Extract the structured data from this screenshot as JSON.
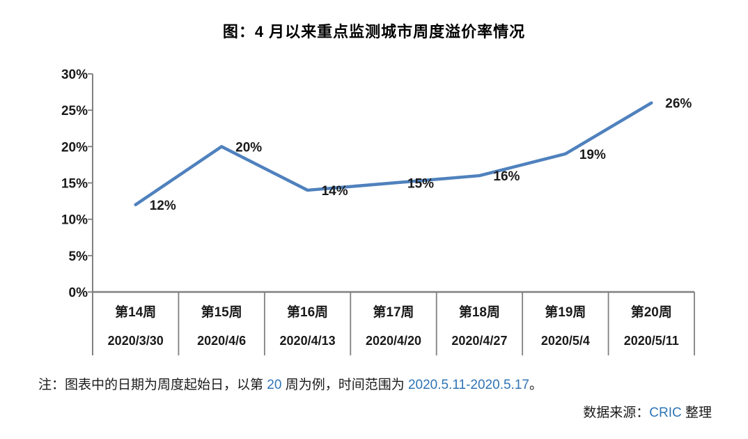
{
  "colors": {
    "line": "#4F81BD",
    "axis": "#808080",
    "accent_blue": "#2E74B5",
    "text": "#1a1a1a"
  },
  "chart_data": {
    "type": "line",
    "title": "图：4 月以来重点监测城市周度溢价率情况",
    "series": [
      {
        "name": "周度溢价率",
        "values": [
          12,
          20,
          14,
          15,
          16,
          19,
          26
        ]
      }
    ],
    "values": [
      12,
      20,
      14,
      15,
      16,
      19,
      26
    ],
    "point_labels": [
      "12%",
      "20%",
      "14%",
      "15%",
      "16%",
      "19%",
      "26%"
    ],
    "categories": [
      {
        "week": "第14周",
        "date": "2020/3/30"
      },
      {
        "week": "第15周",
        "date": "2020/4/6"
      },
      {
        "week": "第16周",
        "date": "2020/4/13"
      },
      {
        "week": "第17周",
        "date": "2020/4/20"
      },
      {
        "week": "第18周",
        "date": "2020/4/27"
      },
      {
        "week": "第19周",
        "date": "2020/5/4"
      },
      {
        "week": "第20周",
        "date": "2020/5/11"
      }
    ],
    "y_ticks": [
      "30%",
      "25%",
      "20%",
      "15%",
      "10%",
      "5%",
      "0%"
    ],
    "ylim": [
      0,
      30
    ],
    "xlabel": "",
    "ylabel": "",
    "grid": "off",
    "legend": "none",
    "line_color": "#4F81BD",
    "axis_color": "#808080"
  },
  "note": {
    "prefix": "注：图表中的日期为周度起始日，以第 ",
    "week_num": "20",
    "middle": " 周为例，时间范围为 ",
    "range": "2020.5.11-2020.5.17",
    "suffix": "。"
  },
  "source": {
    "label": "数据来源：",
    "org": "CRIC",
    "suffix": " 整理"
  }
}
